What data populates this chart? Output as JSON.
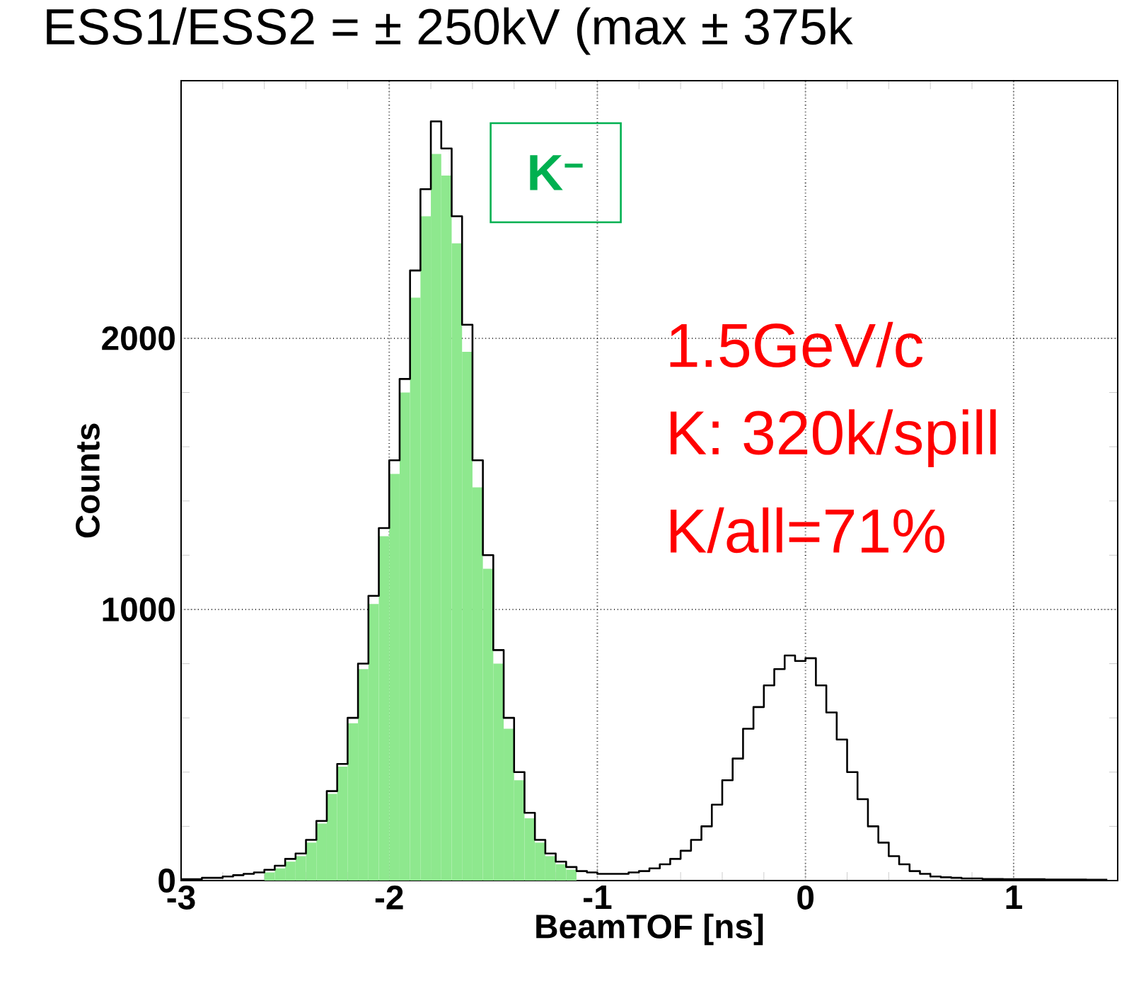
{
  "chart_data": {
    "type": "histogram",
    "title": "ESS1/ESS2 = ± 250kV (max ± 375k",
    "xlabel": "BeamTOF [ns]",
    "ylabel": "Counts",
    "bins": [
      -3,
      -2.95,
      -2.9,
      -2.85,
      -2.8,
      -2.75,
      -2.7,
      -2.65,
      -2.6,
      -2.55,
      -2.5,
      -2.45,
      -2.4,
      -2.35,
      -2.3,
      -2.25,
      -2.2,
      -2.15,
      -2.1,
      -2.05,
      -2,
      -1.95,
      -1.9,
      -1.85,
      -1.8,
      -1.75,
      -1.7,
      -1.65,
      -1.6,
      -1.55,
      -1.5,
      -1.45,
      -1.4,
      -1.35,
      -1.3,
      -1.25,
      -1.2,
      -1.15,
      -1.1,
      -1.05,
      -1,
      -0.95,
      -0.9,
      -0.85,
      -0.8,
      -0.75,
      -0.7,
      -0.65,
      -0.6,
      -0.55,
      -0.5,
      -0.45,
      -0.4,
      -0.35,
      -0.3,
      -0.25,
      -0.2,
      -0.15,
      -0.1,
      -0.05,
      0,
      0.05,
      0.1,
      0.15,
      0.2,
      0.25,
      0.3,
      0.35,
      0.4,
      0.45,
      0.5,
      0.55,
      0.6,
      0.65,
      0.7,
      0.75,
      0.8,
      0.85,
      0.9,
      0.95,
      1,
      1.05,
      1.1,
      1.15,
      1.2,
      1.25,
      1.3,
      1.35,
      1.4,
      1.45,
      1.5
    ],
    "series": [
      {
        "type": "histogram",
        "color": "#8ee88e",
        "values": [
          0,
          0,
          0,
          0,
          0,
          0,
          0,
          0,
          30,
          45,
          70,
          90,
          140,
          210,
          320,
          420,
          580,
          780,
          1020,
          1270,
          1500,
          1800,
          2150,
          2450,
          2680,
          2600,
          2350,
          1950,
          1450,
          1150,
          800,
          560,
          370,
          230,
          140,
          90,
          60,
          40,
          0,
          0,
          0,
          0,
          0,
          0,
          0,
          0,
          0,
          0,
          0,
          0,
          0,
          0,
          0,
          0,
          0,
          0,
          0,
          0,
          0,
          0,
          0,
          0,
          0,
          0,
          0,
          0,
          0,
          0,
          0,
          0,
          0,
          0,
          0,
          0,
          0,
          0,
          0,
          0,
          0,
          0,
          0,
          0,
          0,
          0,
          0,
          0,
          0,
          0,
          0,
          0
        ]
      },
      {
        "type": "step",
        "color": "#000000",
        "x": [
          -3,
          -2.95,
          -2.9,
          -2.85,
          -2.8,
          -2.75,
          -2.7,
          -2.65,
          -2.6,
          -2.55,
          -2.5,
          -2.45,
          -2.4,
          -2.35,
          -2.3,
          -2.25,
          -2.2,
          -2.15,
          -2.1,
          -2.05,
          -2,
          -1.95,
          -1.9,
          -1.85,
          -1.8,
          -1.75,
          -1.7,
          -1.65,
          -1.6,
          -1.55,
          -1.5,
          -1.45,
          -1.4,
          -1.35,
          -1.3,
          -1.25,
          -1.2,
          -1.15,
          -1.1,
          -1.05,
          -1,
          -0.95,
          -0.9,
          -0.85,
          -0.8,
          -0.75,
          -0.7,
          -0.65,
          -0.6,
          -0.55,
          -0.5,
          -0.45,
          -0.4,
          -0.35,
          -0.3,
          -0.25,
          -0.2,
          -0.15,
          -0.1,
          -0.05,
          0,
          0.05,
          0.1,
          0.15,
          0.2,
          0.25,
          0.3,
          0.35,
          0.4,
          0.45,
          0.5,
          0.55,
          0.6,
          0.65,
          0.7,
          0.75,
          0.8,
          0.85,
          0.9,
          0.95,
          1,
          1.05,
          1.1,
          1.15,
          1.2,
          1.25,
          1.3,
          1.35,
          1.4,
          1.45
        ],
        "values": [
          5,
          5,
          10,
          10,
          15,
          20,
          25,
          30,
          40,
          55,
          80,
          100,
          150,
          220,
          330,
          430,
          600,
          800,
          1050,
          1300,
          1550,
          1850,
          2250,
          2550,
          2800,
          2700,
          2450,
          2050,
          1550,
          1200,
          850,
          600,
          400,
          250,
          150,
          100,
          70,
          50,
          35,
          30,
          25,
          25,
          25,
          30,
          35,
          45,
          60,
          80,
          110,
          150,
          200,
          280,
          370,
          450,
          560,
          640,
          720,
          780,
          830,
          810,
          820,
          720,
          620,
          520,
          400,
          300,
          200,
          140,
          90,
          60,
          35,
          25,
          15,
          12,
          10,
          8,
          8,
          6,
          6,
          5,
          5,
          5,
          5,
          4,
          4,
          4,
          4,
          3,
          3,
          3
        ]
      }
    ],
    "xlim": [
      -3,
      1.5
    ],
    "ylim": [
      0,
      2950
    ],
    "xticks": [
      -3,
      -2,
      -1,
      0,
      1
    ],
    "yticks": [
      0,
      1000,
      2000
    ],
    "grid": true,
    "annotations": [
      "K$^{−}$",
      "1.5GeV/c",
      "K: 320k/spill",
      "K/all=71%"
    ]
  }
}
